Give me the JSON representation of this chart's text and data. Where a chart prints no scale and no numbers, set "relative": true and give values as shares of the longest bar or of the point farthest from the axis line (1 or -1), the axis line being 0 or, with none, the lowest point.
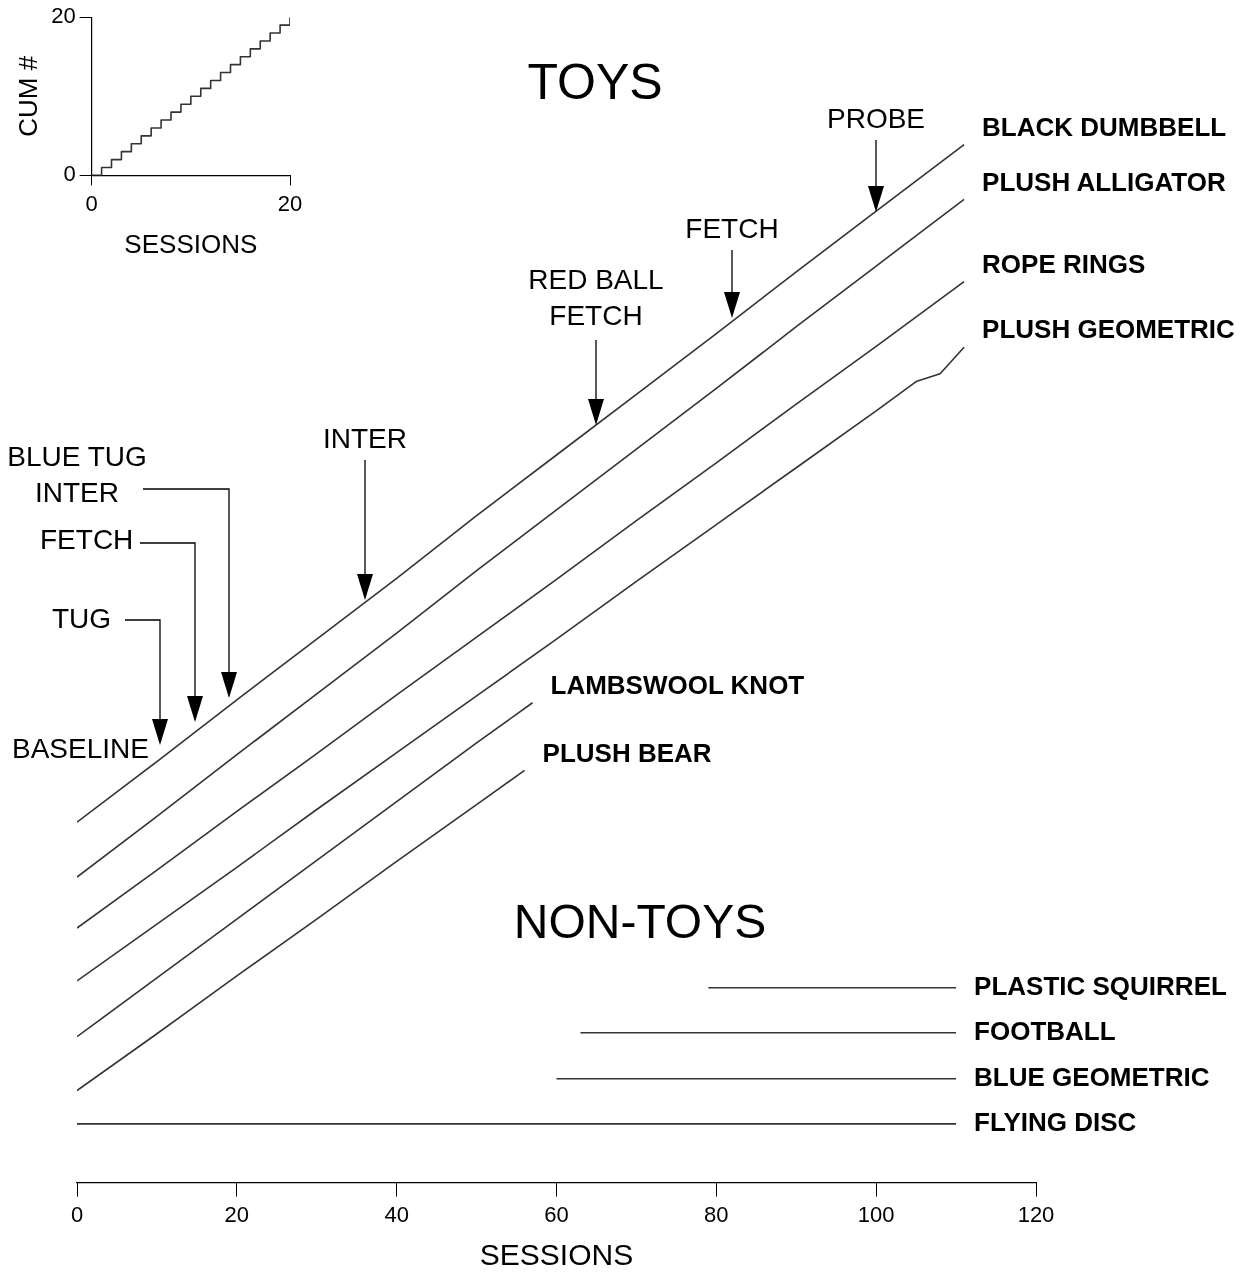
{
  "chart_data": [
    {
      "type": "step",
      "xlabel": "SESSIONS",
      "ylabel": "CUM #",
      "x": [
        0,
        1,
        2,
        3,
        4,
        5,
        6,
        7,
        8,
        9,
        10,
        11,
        12,
        13,
        14,
        15,
        16,
        17,
        18,
        19,
        20
      ],
      "xlim": [
        0,
        20
      ],
      "ylim": [
        0,
        20
      ],
      "xticks": [
        0,
        20
      ],
      "yticks": [
        0,
        20
      ],
      "marker": "none",
      "legend": false,
      "series": [
        {
          "color": "#333333",
          "values": [
            0,
            1,
            2,
            3,
            4,
            5,
            6,
            7,
            8,
            9,
            10,
            11,
            12,
            13,
            14,
            15,
            16,
            17,
            18,
            19,
            20
          ]
        }
      ]
    },
    {
      "type": "line",
      "relative": true,
      "xlabel": "SESSIONS",
      "xlim": [
        0,
        120
      ],
      "xticks": [
        0,
        20,
        40,
        60,
        80,
        100,
        120
      ],
      "marker": "none",
      "legend": false,
      "annotations": [
        "TOYS",
        "NON-TOYS",
        "BASELINE",
        "TUG",
        "FETCH",
        "BLUE TUG INTER",
        "INTER",
        "RED BALL FETCH",
        "FETCH",
        "PROBE"
      ],
      "series": [
        {
          "name": "BLACK DUMBBELL",
          "color": "#333333",
          "x": [
            0,
            10,
            20,
            30,
            40,
            50,
            60,
            70,
            80,
            90,
            100,
            111
          ],
          "values": [
            0.308,
            0.37,
            0.433,
            0.495,
            0.557,
            0.621,
            0.683,
            0.745,
            0.807,
            0.87,
            0.932,
            1
          ]
        },
        {
          "name": "PLUSH ALLIGATOR",
          "color": "#333333",
          "x": [
            0,
            10,
            20,
            30,
            40,
            50,
            60,
            70,
            80,
            90,
            100,
            111
          ],
          "values": [
            0.252,
            0.314,
            0.377,
            0.439,
            0.501,
            0.565,
            0.627,
            0.689,
            0.751,
            0.814,
            0.876,
            0.944
          ]
        },
        {
          "name": "ROPE RINGS",
          "color": "#333333",
          "x": [
            0,
            10,
            20,
            30,
            40,
            50,
            60,
            70,
            80,
            90,
            100,
            111
          ],
          "values": [
            0.2,
            0.259,
            0.319,
            0.378,
            0.438,
            0.497,
            0.556,
            0.616,
            0.675,
            0.735,
            0.794,
            0.86
          ]
        },
        {
          "name": "PLUSH GEOMETRIC",
          "color": "#333333",
          "x": [
            0,
            10,
            20,
            30,
            40,
            50,
            60,
            70,
            80,
            90,
            100,
            105,
            108,
            111
          ],
          "values": [
            0.146,
            0.204,
            0.262,
            0.321,
            0.379,
            0.437,
            0.495,
            0.554,
            0.612,
            0.67,
            0.728,
            0.758,
            0.766,
            0.793
          ]
        },
        {
          "name": "LAMBSWOOL KNOT",
          "color": "#333333",
          "x": [
            0,
            10,
            20,
            30,
            40,
            50,
            57
          ],
          "values": [
            0.089,
            0.149,
            0.209,
            0.269,
            0.329,
            0.389,
            0.43
          ]
        },
        {
          "name": "PLUSH BEAR",
          "color": "#333333",
          "x": [
            0,
            10,
            20,
            30,
            40,
            50,
            56
          ],
          "values": [
            0.034,
            0.092,
            0.151,
            0.209,
            0.268,
            0.326,
            0.361
          ]
        },
        {
          "name": "PLASTIC SQUIRREL",
          "color": "#333333",
          "x": [
            79,
            110
          ],
          "values": [
            0.139,
            0.139
          ]
        },
        {
          "name": "FOOTBALL",
          "color": "#333333",
          "x": [
            63,
            110
          ],
          "values": [
            0.093,
            0.093
          ]
        },
        {
          "name": "BLUE GEOMETRIC",
          "color": "#333333",
          "x": [
            60,
            110
          ],
          "values": [
            0.046,
            0.046
          ]
        },
        {
          "name": "FLYING DISC",
          "color": "#333333",
          "x": [
            0,
            110
          ],
          "values": [
            0,
            0
          ]
        }
      ]
    }
  ]
}
